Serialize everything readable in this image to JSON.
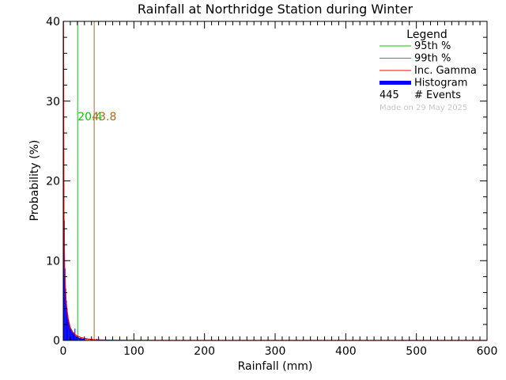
{
  "chart_data": {
    "type": "bar",
    "title": "Rainfall at Northridge Station during Winter",
    "xlabel": "Rainfall (mm)",
    "ylabel": "Probability (%)",
    "xlim": [
      0,
      600
    ],
    "ylim": [
      0,
      40
    ],
    "x_ticks": [
      "0",
      "100",
      "200",
      "300",
      "400",
      "500",
      "600"
    ],
    "y_ticks": [
      "0",
      "10",
      "20",
      "30",
      "40"
    ],
    "bin_width_mm": 1,
    "histogram": {
      "name": "Histogram",
      "color": "#0000ff",
      "bins": [
        [
          0,
          36
        ],
        [
          1,
          15
        ],
        [
          2,
          9
        ],
        [
          3,
          6.5
        ],
        [
          4,
          5
        ],
        [
          5,
          4
        ],
        [
          6,
          3.2
        ],
        [
          7,
          2.6
        ],
        [
          8,
          2.1
        ],
        [
          9,
          1.8
        ],
        [
          10,
          1.5
        ],
        [
          11,
          1.3
        ],
        [
          12,
          1.1
        ],
        [
          13,
          1
        ],
        [
          14,
          0.9
        ],
        [
          15,
          0.8
        ],
        [
          16,
          1.5
        ],
        [
          17,
          0.6
        ],
        [
          18,
          0.5
        ],
        [
          19,
          0.5
        ],
        [
          20,
          0.4
        ],
        [
          21,
          0.4
        ],
        [
          22,
          0.3
        ],
        [
          23,
          0.3
        ],
        [
          24,
          0.3
        ],
        [
          25,
          0.25
        ],
        [
          26,
          0.25
        ],
        [
          27,
          0.2
        ],
        [
          28,
          0.2
        ],
        [
          29,
          0.2
        ],
        [
          30,
          0.15
        ],
        [
          32,
          0.15
        ],
        [
          35,
          0.1
        ],
        [
          38,
          0.1
        ],
        [
          40,
          0.2
        ],
        [
          44,
          0.1
        ],
        [
          47,
          0.2
        ],
        [
          52,
          0.1
        ],
        [
          60,
          0.1
        ],
        [
          500,
          0.1
        ]
      ]
    },
    "gamma_curve": {
      "name": "Inc. Gamma",
      "color": "#ff0000",
      "x": [
        0.3,
        1,
        2,
        3,
        4,
        5,
        7,
        10,
        13,
        16,
        20,
        25,
        30,
        40,
        50,
        70,
        100,
        150,
        200,
        300,
        400,
        500,
        600
      ],
      "y": [
        40,
        16,
        9,
        6.5,
        5,
        4,
        2.7,
        1.6,
        1.1,
        0.8,
        0.55,
        0.35,
        0.25,
        0.12,
        0.07,
        0.03,
        0.01,
        0,
        0,
        0,
        0,
        0,
        0
      ]
    },
    "percentiles": [
      {
        "name": "95th %",
        "value": 20.4,
        "label": "20.4",
        "color": "#00cc00"
      },
      {
        "name": "99th %",
        "value": 43.8,
        "label": "43.8",
        "color": "#b8651f"
      }
    ],
    "legend": {
      "title": "Legend",
      "placement": "top-right",
      "entries": [
        {
          "label": "95th %",
          "color": "#00cc00",
          "style": "line"
        },
        {
          "label": "99th %",
          "color": "#b8651f",
          "style": "line"
        },
        {
          "label": "Inc. Gamma",
          "color": "#ff0000",
          "style": "line"
        },
        {
          "label": "Histogram",
          "color": "#0000ff",
          "style": "thick"
        }
      ],
      "events_count": "445",
      "events_label": "# Events",
      "made_on": "Made on 29 May 2025"
    },
    "grid": false
  }
}
